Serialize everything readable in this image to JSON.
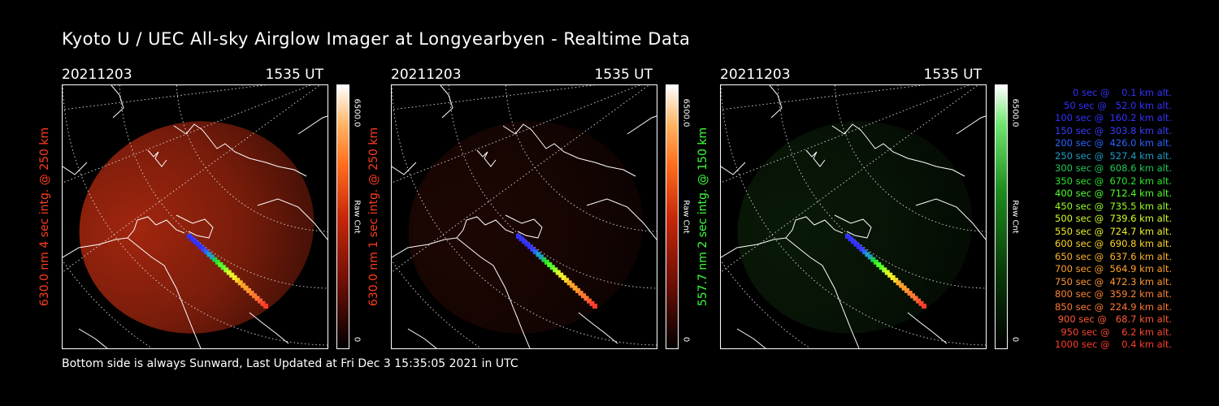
{
  "title": "Kyoto U / UEC All-sky Airglow Imager at Longyearbyen - Realtime Data",
  "footer": "Bottom side is always Sunward, Last Updated at Fri Dec  3 15:35:05 2021 in UTC",
  "panels": [
    {
      "date": "20211203",
      "time": "1535 UT",
      "ylabel": "630.0 nm 4 sec intg. @ 250 km",
      "label_color": "#ff3c1e",
      "colorbar_max": "6500.0",
      "colorbar_unit": "Raw Cnt",
      "colorbar_min": "0",
      "tint": "#b32a10",
      "intensity": 0.9
    },
    {
      "date": "20211203",
      "time": "1535 UT",
      "ylabel": "630.0 nm 1 sec intg. @ 250 km",
      "label_color": "#ff3c1e",
      "colorbar_max": "6500.0",
      "colorbar_unit": "Raw Cnt",
      "colorbar_min": "0",
      "tint": "#3a0d06",
      "intensity": 0.5
    },
    {
      "date": "20211203",
      "time": "1535 UT",
      "ylabel": "557.7 nm 2 sec intg. @ 150 km",
      "label_color": "#3cff3c",
      "colorbar_max": "6500.0",
      "colorbar_unit": "Raw Cnt",
      "colorbar_min": "0",
      "tint": "#0f2a0c",
      "intensity": 0.6
    }
  ],
  "legend": [
    {
      "text": "0 sec @    0.1 km alt.",
      "color": "#3232ff"
    },
    {
      "text": "50 sec @   52.0 km alt.",
      "color": "#3232ff"
    },
    {
      "text": "100 sec @  160.2 km alt.",
      "color": "#3232ff"
    },
    {
      "text": "150 sec @  303.8 km alt.",
      "color": "#3c3cff"
    },
    {
      "text": "200 sec @  426.0 km alt.",
      "color": "#2864ff"
    },
    {
      "text": "250 sec @  527.4 km alt.",
      "color": "#1e9ec8"
    },
    {
      "text": "300 sec @  608.6 km alt.",
      "color": "#1ec85a"
    },
    {
      "text": "350 sec @  670.2 km alt.",
      "color": "#28e628"
    },
    {
      "text": "400 sec @  712.4 km alt.",
      "color": "#50ff28"
    },
    {
      "text": "450 sec @  735.5 km alt.",
      "color": "#96ff28"
    },
    {
      "text": "500 sec @  739.6 km alt.",
      "color": "#d2ff28"
    },
    {
      "text": "550 sec @  724.7 km alt.",
      "color": "#f0f028"
    },
    {
      "text": "600 sec @  690.8 km alt.",
      "color": "#ffd728"
    },
    {
      "text": "650 sec @  637.6 km alt.",
      "color": "#ffb428"
    },
    {
      "text": "700 sec @  564.9 km alt.",
      "color": "#ffa028"
    },
    {
      "text": "750 sec @  472.3 km alt.",
      "color": "#ff9632"
    },
    {
      "text": "800 sec @  359.2 km alt.",
      "color": "#ff8232"
    },
    {
      "text": "850 sec @  224.9 km alt.",
      "color": "#ff7832"
    },
    {
      "text": "900 sec @   68.7 km alt.",
      "color": "#ff5a32"
    },
    {
      "text": "950 sec @    6.2 km alt.",
      "color": "#ff4632"
    },
    {
      "text": "1000 sec @    0.4 km alt.",
      "color": "#ff3c28"
    }
  ]
}
